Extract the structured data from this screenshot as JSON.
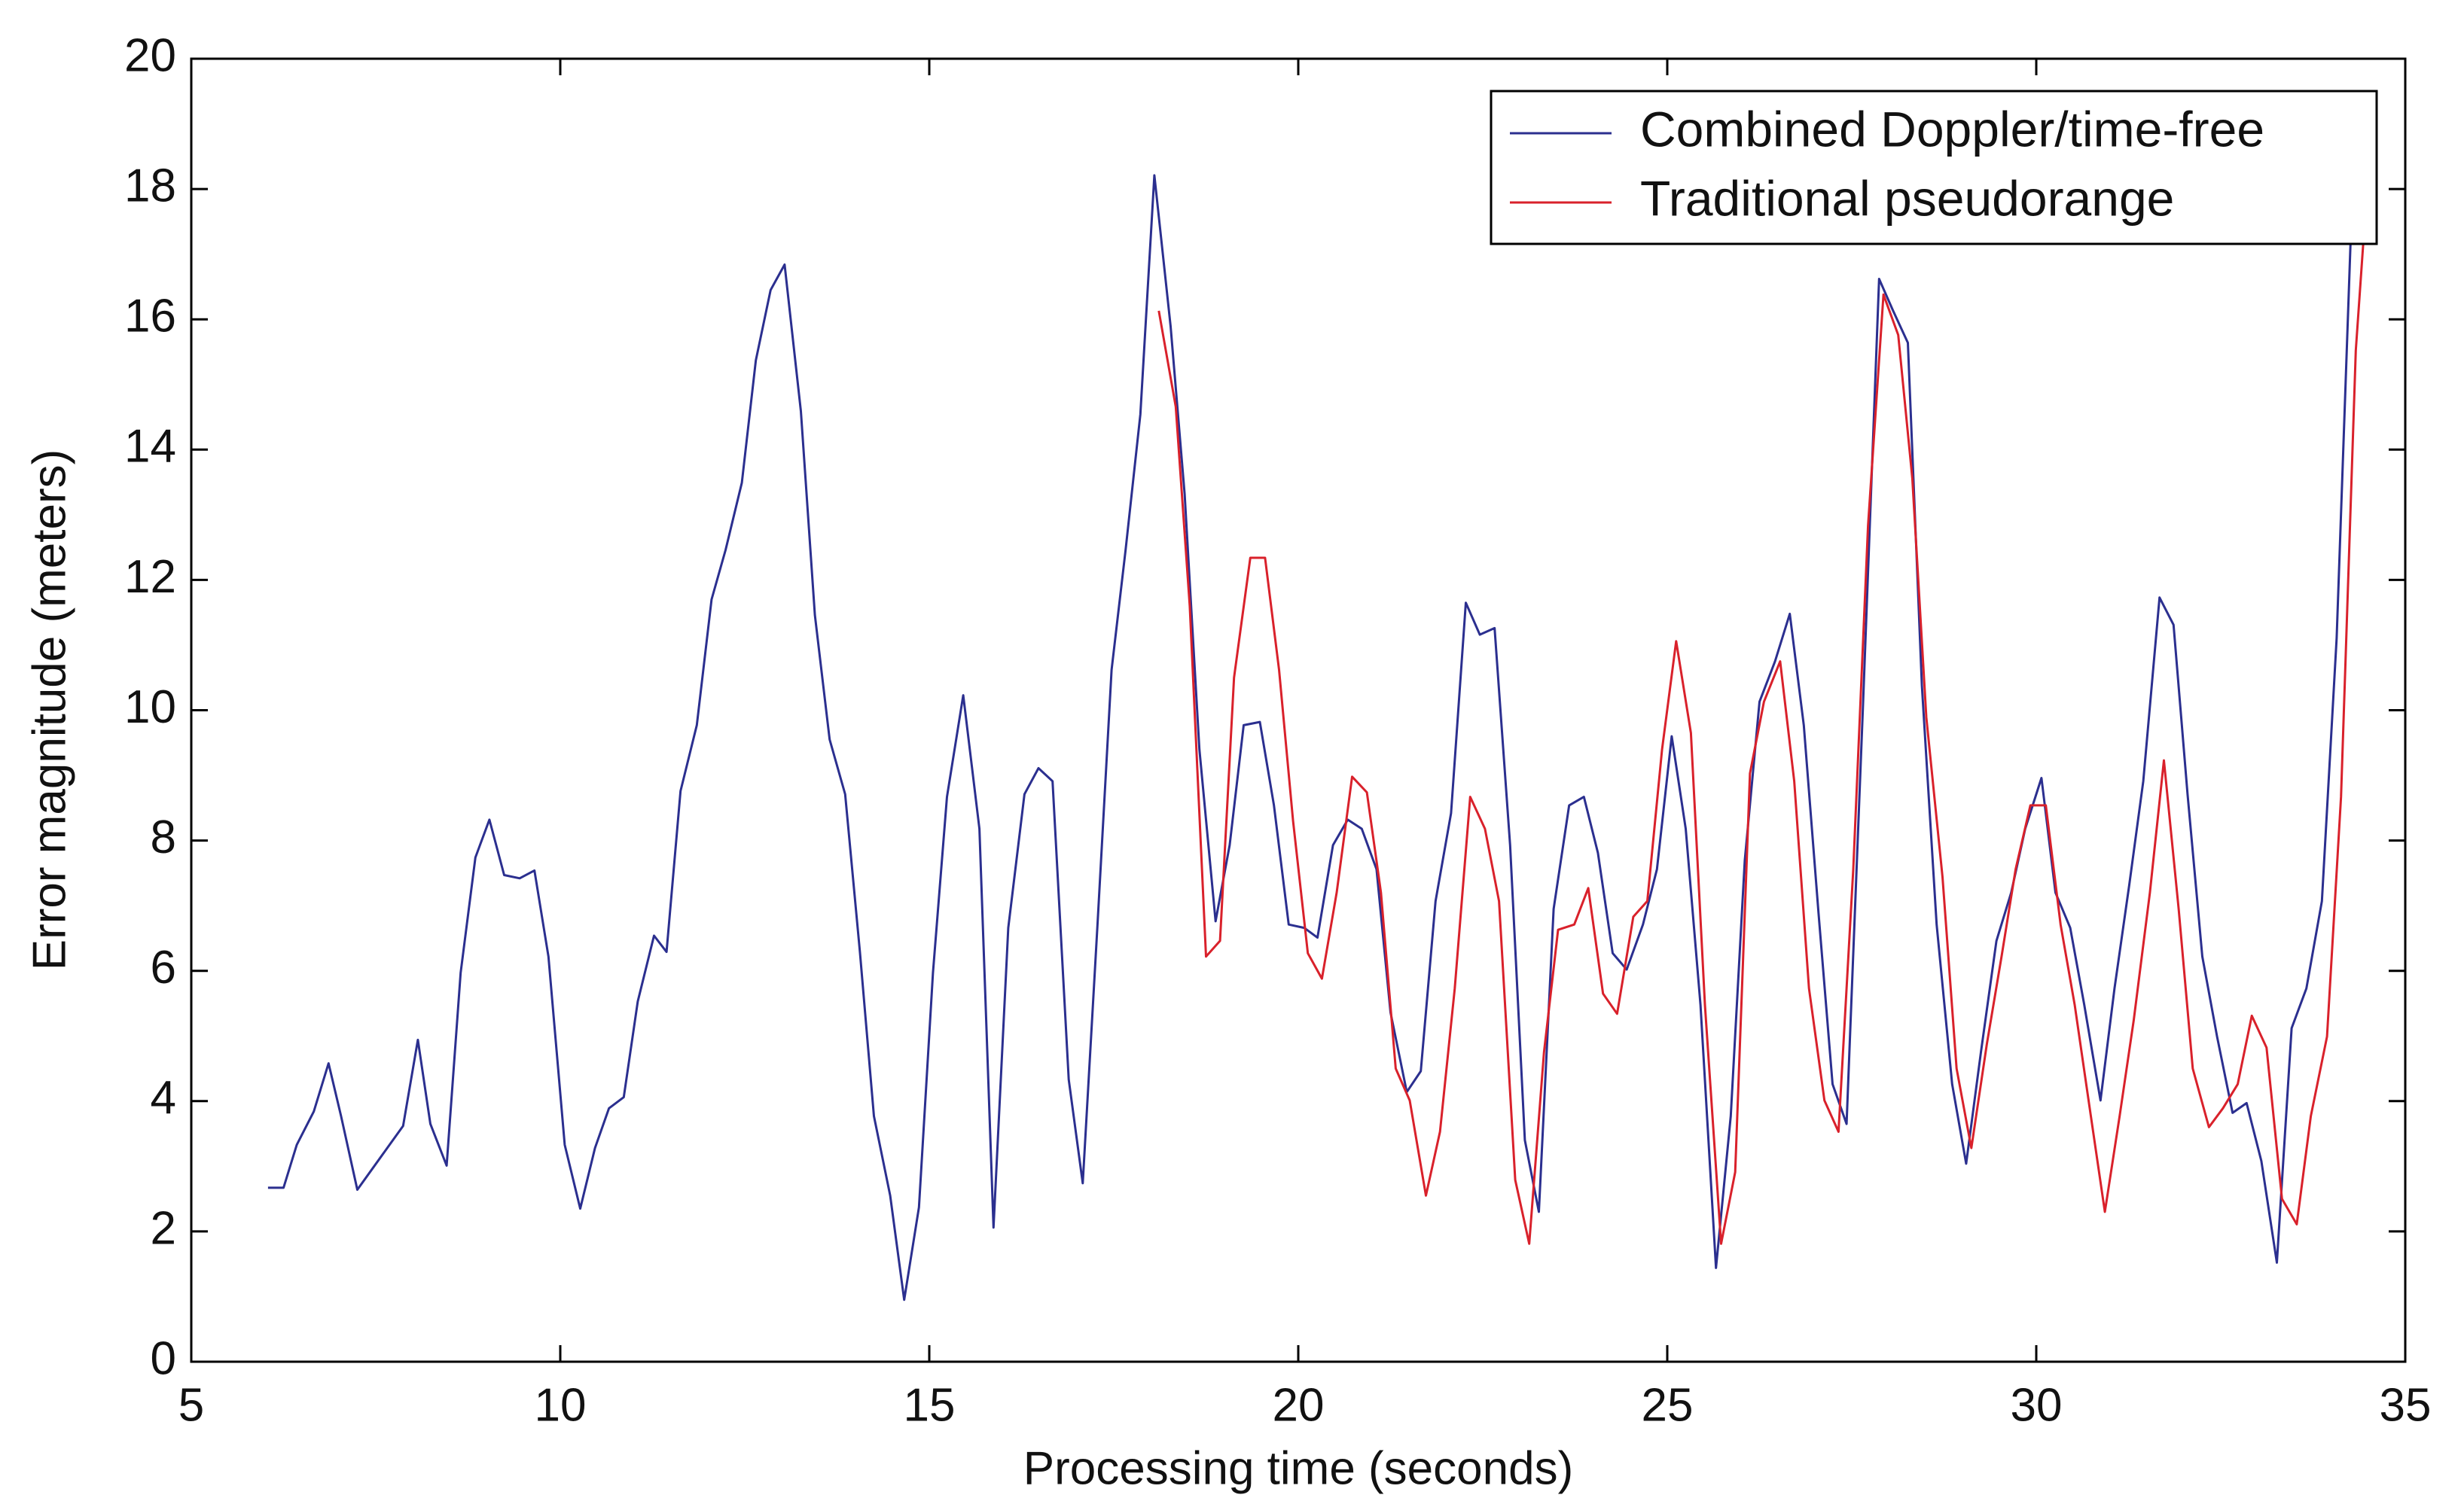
{
  "chart_data": {
    "type": "line",
    "xlabel": "Processing time (seconds)",
    "ylabel": "Error magnitude (meters)",
    "xlim": [
      5,
      35
    ],
    "xticks": [
      5,
      10,
      15,
      20,
      25,
      30,
      35
    ],
    "ylim": [
      0,
      20
    ],
    "yticks": [
      0,
      2,
      4,
      6,
      8,
      10,
      12,
      14,
      16,
      18,
      20
    ],
    "legend": "upper right",
    "series": [
      {
        "name": "Combined Doppler/time-free",
        "color": "#2b2f8f",
        "x": [
          6.04,
          6.25,
          6.43,
          6.66,
          6.86,
          7.03,
          7.25,
          7.87,
          8.07,
          8.24,
          8.46,
          8.65,
          8.85,
          9.04,
          9.24,
          9.45,
          9.65,
          9.84,
          10.06,
          10.27,
          10.47,
          10.66,
          10.86,
          11.05,
          11.27,
          11.44,
          11.63,
          11.85,
          12.05,
          12.24,
          12.46,
          12.65,
          12.85,
          13.04,
          13.26,
          13.45,
          13.65,
          13.86,
          14.06,
          14.25,
          14.47,
          14.66,
          14.86,
          15.05,
          15.24,
          15.46,
          15.68,
          15.87,
          16.07,
          16.29,
          16.48,
          16.67,
          16.89,
          17.08,
          17.28,
          17.47,
          17.66,
          17.86,
          18.05,
          18.27,
          18.46,
          18.66,
          18.88,
          19.07,
          19.26,
          19.48,
          19.67,
          19.87,
          20.08,
          20.26,
          20.47,
          20.67,
          20.86,
          21.06,
          21.25,
          21.47,
          21.66,
          21.86,
          22.07,
          22.27,
          22.46,
          22.66,
          22.87,
          23.07,
          23.26,
          23.46,
          23.67,
          23.87,
          24.06,
          24.26,
          24.45,
          24.67,
          24.86,
          25.06,
          25.25,
          25.45,
          25.66,
          25.86,
          26.05,
          26.25,
          26.46,
          26.66,
          26.85,
          27.05,
          27.24,
          27.43,
          27.65,
          27.87,
          28.06,
          28.26,
          28.45,
          28.65,
          28.86,
          29.05,
          29.25,
          29.46,
          29.66,
          29.85,
          30.07,
          30.26,
          30.46,
          30.65,
          30.87,
          31.06,
          31.26,
          31.45,
          31.67,
          31.86,
          32.05,
          32.25,
          32.45,
          32.66,
          32.85,
          33.05,
          33.26,
          33.46,
          33.66,
          33.87,
          34.07,
          34.26,
          34.35
        ],
        "values": [
          2.67,
          2.67,
          3.33,
          3.84,
          4.58,
          3.77,
          2.64,
          3.62,
          4.94,
          3.65,
          3.01,
          5.97,
          7.74,
          8.32,
          7.47,
          7.42,
          7.54,
          6.22,
          3.33,
          2.35,
          3.28,
          3.89,
          4.06,
          5.53,
          6.54,
          6.29,
          8.76,
          9.77,
          11.7,
          12.46,
          13.49,
          15.37,
          16.45,
          16.84,
          14.59,
          11.46,
          9.55,
          8.71,
          6.29,
          3.77,
          2.55,
          0.95,
          2.37,
          5.97,
          8.67,
          10.23,
          8.18,
          2.06,
          6.66,
          8.71,
          9.11,
          8.91,
          4.33,
          2.74,
          6.71,
          10.62,
          12.46,
          14.54,
          18.21,
          15.89,
          13.32,
          9.4,
          6.76,
          7.93,
          9.77,
          9.82,
          8.54,
          6.71,
          6.66,
          6.51,
          7.93,
          8.32,
          8.18,
          7.56,
          5.36,
          4.14,
          4.46,
          7.07,
          8.42,
          11.65,
          11.16,
          11.26,
          7.93,
          3.4,
          2.3,
          6.95,
          8.54,
          8.67,
          7.81,
          6.27,
          6.02,
          6.71,
          7.56,
          9.6,
          8.18,
          5.48,
          1.44,
          3.77,
          7.69,
          10.13,
          10.75,
          11.48,
          9.77,
          6.88,
          4.26,
          3.65,
          10.01,
          16.62,
          16.13,
          15.64,
          10.38,
          6.71,
          4.26,
          3.04,
          4.75,
          6.46,
          7.2,
          8.18,
          8.96,
          7.2,
          6.66,
          5.48,
          4.01,
          5.73,
          7.32,
          8.91,
          11.73,
          11.31,
          8.71,
          6.22,
          4.99,
          3.82,
          3.97,
          3.08,
          1.52,
          5.12,
          5.73,
          7.07,
          11.11,
          17.23,
          17.6
        ]
      },
      {
        "name": "Traditional pseudorange",
        "color": "#d9212b",
        "x": [
          18.11,
          18.34,
          18.53,
          18.75,
          18.94,
          19.13,
          19.35,
          19.55,
          19.74,
          19.93,
          20.13,
          20.32,
          20.52,
          20.73,
          20.93,
          21.12,
          21.32,
          21.51,
          21.73,
          21.92,
          22.12,
          22.33,
          22.53,
          22.72,
          22.94,
          23.13,
          23.33,
          23.52,
          23.74,
          23.93,
          24.13,
          24.32,
          24.54,
          24.73,
          24.93,
          25.12,
          25.32,
          25.51,
          25.73,
          25.92,
          26.12,
          26.31,
          26.53,
          26.72,
          26.92,
          27.13,
          27.32,
          27.52,
          27.72,
          27.93,
          28.13,
          28.32,
          28.51,
          28.73,
          28.92,
          29.12,
          29.33,
          29.53,
          29.72,
          29.92,
          30.13,
          30.33,
          30.52,
          30.74,
          30.93,
          31.13,
          31.32,
          31.54,
          31.73,
          31.93,
          32.12,
          32.34,
          32.53,
          32.73,
          32.92,
          33.12,
          33.33,
          33.53,
          33.72,
          33.94,
          34.13,
          34.33,
          34.45
        ],
        "values": [
          16.13,
          14.66,
          11.6,
          6.22,
          6.46,
          10.5,
          12.34,
          12.34,
          10.62,
          8.3,
          6.27,
          5.88,
          7.2,
          8.98,
          8.74,
          7.2,
          4.5,
          4.01,
          2.55,
          3.53,
          5.73,
          8.67,
          8.18,
          7.07,
          2.79,
          1.81,
          4.75,
          6.63,
          6.71,
          7.27,
          5.65,
          5.34,
          6.83,
          7.07,
          9.4,
          11.06,
          9.65,
          5.48,
          1.81,
          2.91,
          9.03,
          10.13,
          10.75,
          8.91,
          5.73,
          4.01,
          3.53,
          7.56,
          12.83,
          16.38,
          15.76,
          13.56,
          9.89,
          7.44,
          4.5,
          3.28,
          4.87,
          6.22,
          7.56,
          8.54,
          8.54,
          6.71,
          5.48,
          3.77,
          2.3,
          3.77,
          5.24,
          7.2,
          9.23,
          6.95,
          4.5,
          3.6,
          3.89,
          4.26,
          5.31,
          4.82,
          2.5,
          2.11,
          3.77,
          4.99,
          8.67,
          15.52,
          17.48
        ]
      }
    ]
  }
}
